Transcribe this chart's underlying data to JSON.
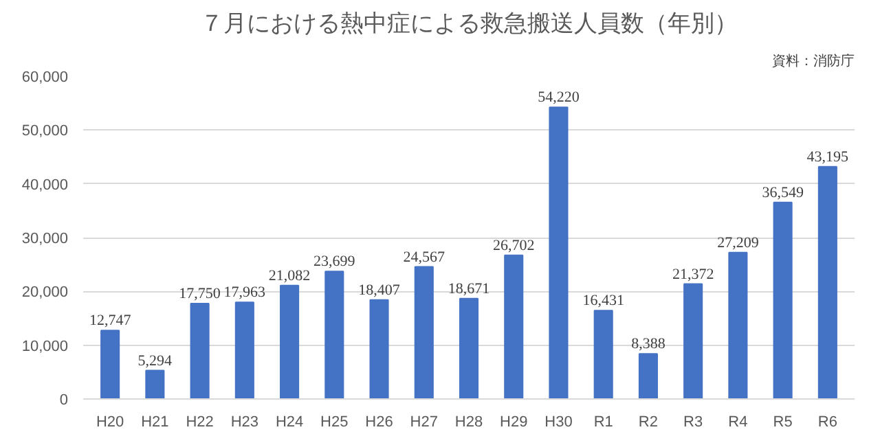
{
  "chart_data": {
    "type": "bar",
    "title": "７月における熱中症による救急搬送人員数（年別）",
    "annotations": [
      "資料：消防庁"
    ],
    "categories": [
      "H20",
      "H21",
      "H22",
      "H23",
      "H24",
      "H25",
      "H26",
      "H27",
      "H28",
      "H29",
      "H30",
      "R1",
      "R2",
      "R3",
      "R4",
      "R5",
      "R6"
    ],
    "values": [
      12747,
      5294,
      17750,
      17963,
      21082,
      23699,
      18407,
      24567,
      18671,
      26702,
      54220,
      16431,
      8388,
      21372,
      27209,
      36549,
      43195
    ],
    "value_labels": [
      "12,747",
      "5,294",
      "17,750",
      "17,963",
      "21,082",
      "23,699",
      "18,407",
      "24,567",
      "18,671",
      "26,702",
      "54,220",
      "16,431",
      "8,388",
      "21,372",
      "27,209",
      "36,549",
      "43,195"
    ],
    "color": "#4472c4",
    "ylim": [
      0,
      60000
    ],
    "yticks": [
      {
        "value": 0,
        "label": "0"
      },
      {
        "value": 10000,
        "label": "10,000"
      },
      {
        "value": 20000,
        "label": "20,000"
      },
      {
        "value": 30000,
        "label": "30,000"
      },
      {
        "value": 40000,
        "label": "40,000"
      },
      {
        "value": 50000,
        "label": "50,000"
      },
      {
        "value": 60000,
        "label": "60,000"
      }
    ],
    "grid": "y"
  }
}
